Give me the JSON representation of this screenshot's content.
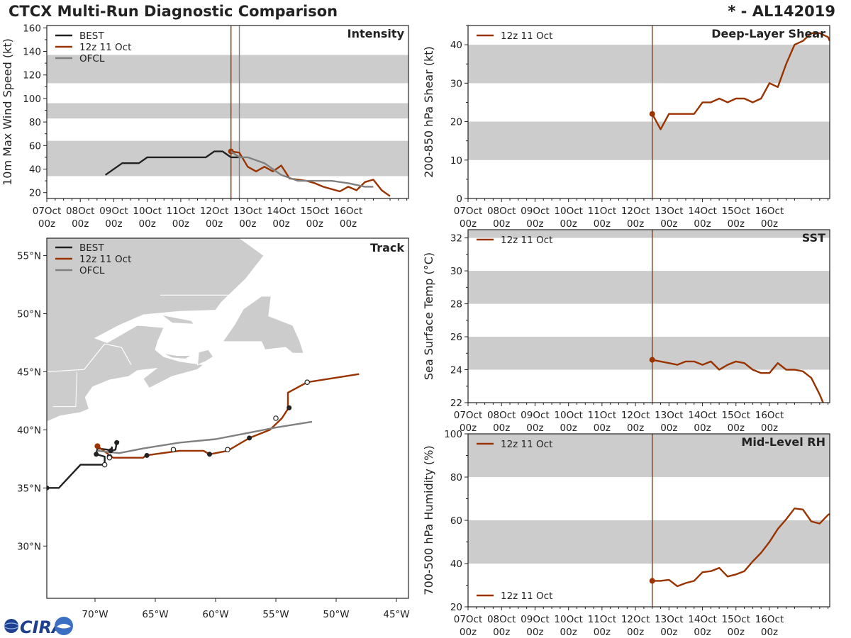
{
  "header": {
    "title": "CTCX Multi-Run Diagnostic Comparison",
    "storm": "* - AL142019"
  },
  "logo": {
    "text": "CIRA"
  },
  "colors": {
    "best": "#222222",
    "run": "#993300",
    "ofcl": "#808080",
    "band": "#cccccc",
    "axis": "#222222"
  },
  "time_ticks": {
    "days": [
      "07Oct",
      "08Oct",
      "09Oct",
      "10Oct",
      "11Oct",
      "12Oct",
      "13Oct",
      "14Oct",
      "15Oct",
      "16Oct"
    ],
    "hour": "00z"
  },
  "chart_data": [
    {
      "id": "intensity",
      "type": "line",
      "title": "Intensity",
      "ylabel": "10m Max Wind Speed (kt)",
      "xlim": [
        0,
        10.8
      ],
      "ylim": [
        15,
        162
      ],
      "yticks": [
        "20",
        "40",
        "60",
        "80",
        "100",
        "120",
        "140",
        "160"
      ],
      "bands": [
        [
          34,
          64
        ],
        [
          83,
          96
        ],
        [
          113,
          137
        ]
      ],
      "vlines": [
        {
          "x": 5.5,
          "color": "run"
        },
        {
          "x": 5.75,
          "color": "ofcl"
        }
      ],
      "legend": [
        "BEST",
        "12z 11 Oct",
        "OFCL"
      ],
      "series": [
        {
          "name": "BEST",
          "color": "best",
          "x": [
            1.75,
            2.25,
            2.75,
            3,
            3.25,
            3.5,
            3.75,
            4,
            4.25,
            4.5,
            4.75,
            5,
            5.25,
            5.5,
            5.75
          ],
          "y": [
            35,
            45,
            45,
            50,
            50,
            50,
            50,
            50,
            50,
            50,
            50,
            55,
            55,
            50,
            50
          ]
        },
        {
          "name": "12z 11 Oct",
          "color": "run",
          "x": [
            5.5,
            5.75,
            6,
            6.25,
            6.5,
            6.75,
            7,
            7.25,
            7.5,
            7.75,
            8,
            8.25,
            8.5,
            8.75,
            9,
            9.25,
            9.5,
            9.75,
            10,
            10.25
          ],
          "y": [
            55,
            54,
            42,
            38,
            42,
            38,
            43,
            32,
            31,
            30,
            28,
            25,
            23,
            21,
            25,
            22,
            29,
            31,
            22,
            17
          ],
          "marker_first": true
        },
        {
          "name": "OFCL",
          "color": "ofcl",
          "x": [
            5.5,
            5.75,
            6,
            6.5,
            7,
            7.5,
            8,
            8.5,
            9,
            9.5,
            9.75
          ],
          "y": [
            55,
            50,
            50,
            45,
            35,
            30,
            30,
            30,
            28,
            25,
            25
          ]
        }
      ]
    },
    {
      "id": "shear",
      "type": "line",
      "title": "Deep-Layer Shear",
      "ylabel": "200-850 hPa Shear (kt)",
      "xlim": [
        0,
        10.8
      ],
      "ylim": [
        0,
        45
      ],
      "yticks": [
        "0",
        "10",
        "20",
        "30",
        "40"
      ],
      "bands": [
        [
          10,
          20
        ],
        [
          30,
          40
        ]
      ],
      "vlines": [
        {
          "x": 5.5,
          "color": "run"
        }
      ],
      "legend": [
        "12z 11 Oct"
      ],
      "series": [
        {
          "name": "12z 11 Oct",
          "color": "run",
          "x": [
            5.5,
            5.75,
            6,
            6.25,
            6.5,
            6.75,
            7,
            7.25,
            7.5,
            7.75,
            8,
            8.25,
            8.5,
            8.75,
            9,
            9.25,
            9.5,
            9.75,
            10,
            10.25,
            10.5,
            10.75,
            10.8
          ],
          "y": [
            22,
            18,
            22,
            22,
            22,
            22,
            25,
            25,
            26,
            25,
            26,
            26,
            25,
            26,
            30,
            29,
            35,
            40,
            41,
            43,
            43,
            42,
            41
          ],
          "marker_first": true
        }
      ]
    },
    {
      "id": "sst",
      "type": "line",
      "title": "SST",
      "ylabel": "Sea Surface Temp (°C)",
      "xlim": [
        0,
        10.8
      ],
      "ylim": [
        22,
        32.5
      ],
      "yticks": [
        "22",
        "24",
        "26",
        "28",
        "30",
        "32"
      ],
      "bands": [
        [
          24,
          26
        ],
        [
          28,
          30
        ],
        [
          32,
          32.5
        ]
      ],
      "vlines": [
        {
          "x": 5.5,
          "color": "run"
        }
      ],
      "legend": [
        "12z 11 Oct"
      ],
      "series": [
        {
          "name": "12z 11 Oct",
          "color": "run",
          "x": [
            5.5,
            5.75,
            6,
            6.25,
            6.5,
            6.75,
            7,
            7.25,
            7.5,
            7.75,
            8,
            8.25,
            8.5,
            8.75,
            9,
            9.25,
            9.5,
            9.75,
            10,
            10.25,
            10.5,
            10.6
          ],
          "y": [
            24.6,
            24.5,
            24.4,
            24.3,
            24.5,
            24.5,
            24.3,
            24.5,
            24.0,
            24.3,
            24.5,
            24.4,
            24.0,
            23.8,
            23.8,
            24.4,
            24.0,
            24.0,
            23.9,
            23.5,
            22.5,
            22.0
          ],
          "marker_first": true
        }
      ]
    },
    {
      "id": "rh",
      "type": "line",
      "title": "Mid-Level RH",
      "ylabel": "700-500 hPa Humidity (%)",
      "xlim": [
        0,
        10.8
      ],
      "ylim": [
        20,
        100
      ],
      "yticks": [
        "20",
        "40",
        "60",
        "80",
        "100"
      ],
      "bands": [
        [
          40,
          60
        ],
        [
          80,
          100
        ]
      ],
      "vlines": [
        {
          "x": 5.5,
          "color": "run"
        }
      ],
      "legend": [
        "12z 11 Oct"
      ],
      "legend_bottom": [
        "12z 11 Oct"
      ],
      "series": [
        {
          "name": "12z 11 Oct",
          "color": "run",
          "x": [
            5.5,
            5.75,
            6,
            6.25,
            6.5,
            6.75,
            7,
            7.25,
            7.5,
            7.75,
            8,
            8.25,
            8.5,
            8.75,
            9,
            9.25,
            9.5,
            9.75,
            10,
            10.25,
            10.5,
            10.75,
            10.8
          ],
          "y": [
            32,
            32,
            32.5,
            29.5,
            31,
            32,
            36,
            36.5,
            38,
            34,
            35,
            36.5,
            41,
            45,
            50,
            56,
            60.5,
            65.5,
            65,
            59.5,
            58.5,
            62.5,
            63
          ],
          "marker_first": true
        }
      ]
    },
    {
      "id": "track",
      "type": "scatter",
      "title": "Track",
      "xlim": [
        -74,
        -44
      ],
      "ylim": [
        25.5,
        56.5
      ],
      "xticks": [
        "70°W",
        "65°W",
        "60°W",
        "55°W",
        "50°W",
        "45°W"
      ],
      "yticks": [
        "30°N",
        "35°N",
        "40°N",
        "45°N",
        "50°N",
        "55°N"
      ],
      "legend": [
        "BEST",
        "12z 11 Oct",
        "OFCL"
      ],
      "series": [
        {
          "name": "BEST",
          "color": "best",
          "lon": [
            -74,
            -73,
            -71.2,
            -69.2,
            -69.2,
            -69.9,
            -69.8,
            -69.0,
            -68.7,
            -68.6,
            -68.6,
            -68.3,
            -68.2,
            -68.0
          ],
          "lat": [
            35.0,
            35.0,
            37.0,
            37.0,
            37.7,
            37.9,
            38.4,
            38.3,
            38.2,
            38.5,
            38.2,
            38.3,
            38.9,
            39.0
          ],
          "filled": [
            1,
            0,
            0,
            0,
            0,
            1,
            0,
            0,
            1,
            0,
            0,
            0,
            1,
            0
          ]
        },
        {
          "name": "12z 11 Oct",
          "color": "run",
          "lon": [
            -69.8,
            -68.5,
            -66,
            -65.8,
            -63,
            -61,
            -60.5,
            -59,
            -57.2,
            -55.5,
            -55.0,
            -54.5,
            -54.0,
            -54.0,
            -52.4,
            -48.1
          ],
          "lat": [
            38.6,
            37.6,
            37.6,
            37.8,
            38.2,
            38.2,
            37.9,
            38.2,
            39.3,
            40.0,
            40.5,
            41.0,
            41.8,
            43.2,
            44.1,
            44.8
          ],
          "open_lon": [
            -68.8,
            -63.5,
            -59,
            -55,
            -52.4
          ],
          "open_lat": [
            37.7,
            38.3,
            38.3,
            41.0,
            44.1
          ],
          "closed_lon": [
            -65.7,
            -60.5,
            -57.2,
            -53.9
          ],
          "closed_lat": [
            37.8,
            37.9,
            39.3,
            41.9
          ]
        },
        {
          "name": "OFCL",
          "color": "ofcl",
          "lon": [
            -69.8,
            -68,
            -66,
            -63,
            -60,
            -57,
            -55,
            -52
          ],
          "lat": [
            38.2,
            38.0,
            38.4,
            38.9,
            39.2,
            39.8,
            40.2,
            40.7
          ]
        }
      ]
    }
  ]
}
